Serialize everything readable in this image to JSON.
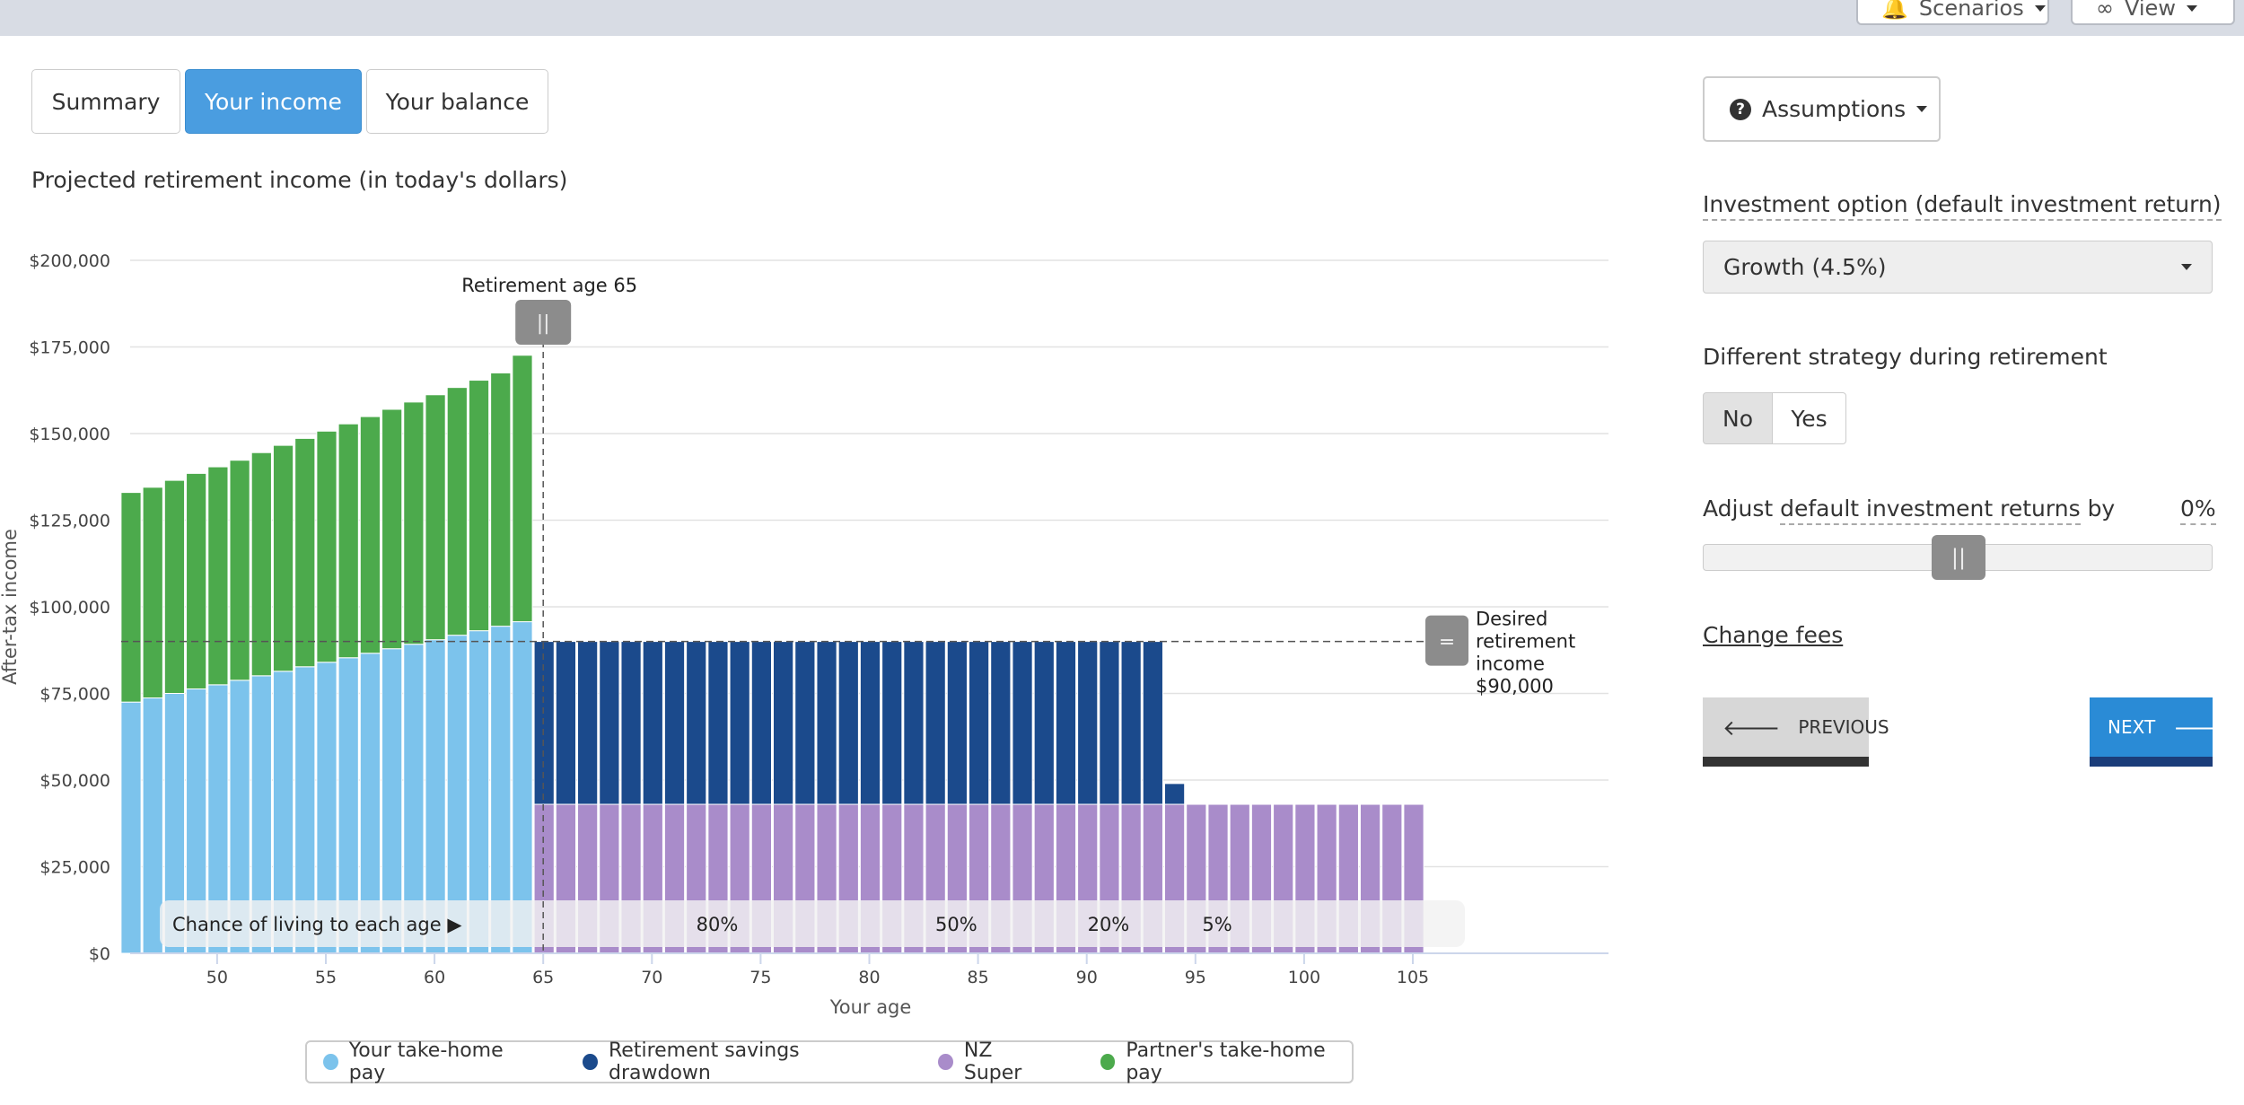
{
  "topbar": {
    "scenarios_label": "Scenarios",
    "view_label": "View"
  },
  "tabs": [
    {
      "label": "Summary",
      "active": false
    },
    {
      "label": "Your income",
      "active": true
    },
    {
      "label": "Your balance",
      "active": false
    }
  ],
  "chart_title": "Projected retirement income (in today's dollars)",
  "chart_data": {
    "type": "bar",
    "stacked": true,
    "xlabel": "Your age",
    "ylabel": "After-tax income",
    "ylim": [
      0,
      200000
    ],
    "y_ticks": [
      "$0",
      "$25,000",
      "$50,000",
      "$75,000",
      "$100,000",
      "$125,000",
      "$150,000",
      "$175,000",
      "$200,000"
    ],
    "x_ticks": [
      50,
      55,
      60,
      65,
      70,
      75,
      80,
      85,
      90,
      95,
      100,
      105
    ],
    "ages": [
      46,
      47,
      48,
      49,
      50,
      51,
      52,
      53,
      54,
      55,
      56,
      57,
      58,
      59,
      60,
      61,
      62,
      63,
      64,
      65,
      66,
      67,
      68,
      69,
      70,
      71,
      72,
      73,
      74,
      75,
      76,
      77,
      78,
      79,
      80,
      81,
      82,
      83,
      84,
      85,
      86,
      87,
      88,
      89,
      90,
      91,
      92,
      93,
      94,
      95,
      96,
      97,
      98,
      99,
      100,
      101,
      102,
      103,
      104,
      105
    ],
    "series": [
      {
        "name": "Your take-home pay",
        "color": "#7cc3ec",
        "values": [
          72500,
          73700,
          75000,
          76300,
          77500,
          78800,
          80100,
          81400,
          82700,
          84000,
          85300,
          86600,
          87900,
          89200,
          90500,
          91800,
          93100,
          94400,
          95700,
          0,
          0,
          0,
          0,
          0,
          0,
          0,
          0,
          0,
          0,
          0,
          0,
          0,
          0,
          0,
          0,
          0,
          0,
          0,
          0,
          0,
          0,
          0,
          0,
          0,
          0,
          0,
          0,
          0,
          0,
          0,
          0,
          0,
          0,
          0,
          0,
          0,
          0,
          0,
          0,
          0
        ]
      },
      {
        "name": "Retirement savings drawdown",
        "color": "#1b4a8c",
        "values": [
          0,
          0,
          0,
          0,
          0,
          0,
          0,
          0,
          0,
          0,
          0,
          0,
          0,
          0,
          0,
          0,
          0,
          0,
          0,
          47000,
          47000,
          47000,
          47000,
          47000,
          47000,
          47000,
          47000,
          47000,
          47000,
          47000,
          47000,
          47000,
          47000,
          47000,
          47000,
          47000,
          47000,
          47000,
          47000,
          47000,
          47000,
          47000,
          47000,
          47000,
          47000,
          47000,
          47000,
          47000,
          6000,
          0,
          0,
          0,
          0,
          0,
          0,
          0,
          0,
          0,
          0,
          0
        ]
      },
      {
        "name": "NZ Super",
        "color": "#a98cca",
        "values": [
          0,
          0,
          0,
          0,
          0,
          0,
          0,
          0,
          0,
          0,
          0,
          0,
          0,
          0,
          0,
          0,
          0,
          0,
          0,
          43000,
          43000,
          43000,
          43000,
          43000,
          43000,
          43000,
          43000,
          43000,
          43000,
          43000,
          43000,
          43000,
          43000,
          43000,
          43000,
          43000,
          43000,
          43000,
          43000,
          43000,
          43000,
          43000,
          43000,
          43000,
          43000,
          43000,
          43000,
          43000,
          43000,
          43000,
          43000,
          43000,
          43000,
          43000,
          43000,
          43000,
          43000,
          43000,
          43000,
          43000
        ]
      },
      {
        "name": "Partner's take-home pay",
        "color": "#4caa4c",
        "values": [
          60500,
          60800,
          61500,
          62200,
          62900,
          63500,
          64400,
          65200,
          65900,
          66700,
          67500,
          68300,
          69100,
          69900,
          70700,
          71500,
          72300,
          73100,
          76900,
          0,
          0,
          0,
          0,
          0,
          0,
          0,
          0,
          0,
          0,
          0,
          0,
          0,
          0,
          0,
          0,
          0,
          0,
          0,
          0,
          0,
          0,
          0,
          0,
          0,
          0,
          0,
          0,
          0,
          0,
          0,
          0,
          0,
          0,
          0,
          0,
          0,
          0,
          0,
          0,
          0
        ]
      }
    ],
    "retirement_marker_label": "Retirement age 65",
    "desired_income": {
      "value": 90000,
      "label_lines": [
        "Desired",
        "retirement",
        "income",
        "$90,000"
      ]
    },
    "chance_strip": {
      "label": "Chance of living to each age ▶",
      "marks": [
        {
          "age": 73,
          "label": "80%"
        },
        {
          "age": 84,
          "label": "50%"
        },
        {
          "age": 91,
          "label": "20%"
        },
        {
          "age": 96,
          "label": "5%"
        }
      ]
    },
    "legend_position": "bottom"
  },
  "sidebar": {
    "assumptions_label": "Assumptions",
    "investment_option_label": "Investment option",
    "investment_option_hint": "(default investment return)",
    "investment_option_value": "Growth (4.5%)",
    "strategy_label": "Different strategy during retirement",
    "strategy_no": "No",
    "strategy_yes": "Yes",
    "adjust_label_prefix": "Adjust",
    "adjust_label_link": "default investment returns",
    "adjust_label_suffix": "by",
    "adjust_value": "0%",
    "slider_position": 0.5,
    "change_fees_label": "Change fees",
    "previous_label": "PREVIOUS",
    "next_label": "NEXT"
  }
}
